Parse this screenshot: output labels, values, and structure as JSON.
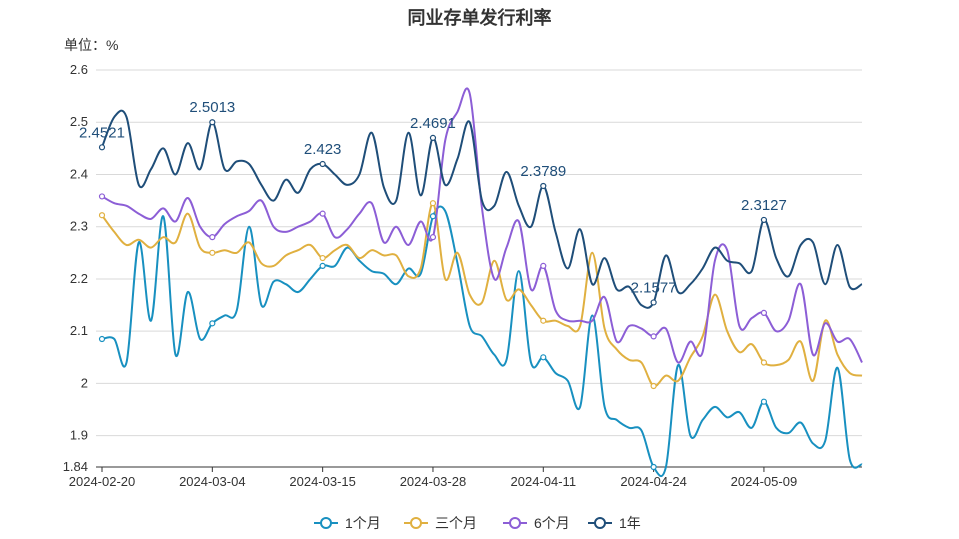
{
  "chart_data": {
    "type": "line",
    "title": "同业存单发行利率",
    "unit_label": "单位：%",
    "x_ticks": [
      "2024-02-20",
      "2024-03-04",
      "2024-03-15",
      "2024-03-28",
      "2024-04-11",
      "2024-04-24",
      "2024-05-09"
    ],
    "y_ticks": [
      "1.84",
      "1.9",
      "2",
      "2.1",
      "2.2",
      "2.3",
      "2.4",
      "2.5",
      "2.6"
    ],
    "ylim": [
      1.84,
      2.6
    ],
    "grid": true,
    "legend_position": "bottom",
    "series": [
      {
        "name": "1个月",
        "color": "#1890c0",
        "values": [
          2.085,
          2.085,
          2.04,
          2.27,
          2.12,
          2.32,
          2.055,
          2.175,
          2.085,
          2.115,
          2.13,
          2.14,
          2.3,
          2.15,
          2.195,
          2.19,
          2.175,
          2.2,
          2.225,
          2.225,
          2.26,
          2.235,
          2.215,
          2.21,
          2.19,
          2.22,
          2.21,
          2.32,
          2.33,
          2.23,
          2.11,
          2.09,
          2.055,
          2.045,
          2.215,
          2.04,
          2.05,
          2.02,
          2.005,
          1.955,
          2.13,
          1.955,
          1.93,
          1.915,
          1.91,
          1.84,
          1.84,
          2.035,
          1.9,
          1.93,
          1.955,
          1.935,
          1.945,
          1.915,
          1.965,
          1.915,
          1.905,
          1.925,
          1.885,
          1.89,
          2.03,
          1.855,
          1.845
        ]
      },
      {
        "name": "三个月",
        "color": "#e0b040",
        "values": [
          2.322,
          2.29,
          2.265,
          2.275,
          2.26,
          2.28,
          2.27,
          2.325,
          2.26,
          2.25,
          2.255,
          2.25,
          2.27,
          2.23,
          2.225,
          2.245,
          2.255,
          2.265,
          2.24,
          2.255,
          2.265,
          2.24,
          2.255,
          2.245,
          2.245,
          2.205,
          2.22,
          2.345,
          2.2,
          2.25,
          2.17,
          2.155,
          2.235,
          2.16,
          2.18,
          2.15,
          2.12,
          2.12,
          2.11,
          2.11,
          2.25,
          2.105,
          2.065,
          2.045,
          2.04,
          1.995,
          2.015,
          2.005,
          2.05,
          2.09,
          2.17,
          2.1,
          2.06,
          2.075,
          2.04,
          2.035,
          2.045,
          2.08,
          2.005,
          2.12,
          2.055,
          2.02,
          2.015
        ]
      },
      {
        "name": "6个月",
        "color": "#8c5ed6",
        "values": [
          2.358,
          2.345,
          2.34,
          2.325,
          2.315,
          2.335,
          2.31,
          2.355,
          2.3,
          2.28,
          2.305,
          2.32,
          2.33,
          2.35,
          2.3,
          2.29,
          2.3,
          2.31,
          2.325,
          2.28,
          2.295,
          2.325,
          2.345,
          2.27,
          2.3,
          2.265,
          2.31,
          2.28,
          2.465,
          2.52,
          2.555,
          2.335,
          2.2,
          2.26,
          2.31,
          2.18,
          2.225,
          2.14,
          2.12,
          2.12,
          2.12,
          2.165,
          2.08,
          2.11,
          2.105,
          2.09,
          2.105,
          2.04,
          2.08,
          2.06,
          2.235,
          2.255,
          2.11,
          2.125,
          2.135,
          2.1,
          2.12,
          2.19,
          2.055,
          2.115,
          2.08,
          2.085,
          2.04
        ]
      },
      {
        "name": "1年",
        "color": "#1f4e79",
        "values": [
          2.452,
          2.51,
          2.51,
          2.38,
          2.41,
          2.45,
          2.4,
          2.46,
          2.41,
          2.5,
          2.41,
          2.425,
          2.42,
          2.38,
          2.35,
          2.39,
          2.365,
          2.41,
          2.42,
          2.4,
          2.38,
          2.4,
          2.48,
          2.375,
          2.35,
          2.48,
          2.36,
          2.47,
          2.38,
          2.43,
          2.5,
          2.35,
          2.34,
          2.405,
          2.34,
          2.3,
          2.378,
          2.29,
          2.22,
          2.295,
          2.19,
          2.24,
          2.18,
          2.185,
          2.15,
          2.155,
          2.245,
          2.175,
          2.19,
          2.22,
          2.26,
          2.235,
          2.23,
          2.215,
          2.313,
          2.24,
          2.205,
          2.265,
          2.27,
          2.19,
          2.265,
          2.185,
          2.19
        ]
      }
    ],
    "annotations": [
      {
        "series": "1年",
        "index": 0,
        "label": "2.4521"
      },
      {
        "series": "1年",
        "index": 9,
        "label": "2.5013"
      },
      {
        "series": "1年",
        "index": 18,
        "label": "2.423"
      },
      {
        "series": "1年",
        "index": 27,
        "label": "2.4691"
      },
      {
        "series": "1年",
        "index": 36,
        "label": "2.3789"
      },
      {
        "series": "1年",
        "index": 45,
        "label": "2.1577"
      },
      {
        "series": "1年",
        "index": 54,
        "label": "2.3127"
      }
    ],
    "marker_indices": [
      0,
      9,
      18,
      27,
      36,
      45,
      54
    ]
  }
}
